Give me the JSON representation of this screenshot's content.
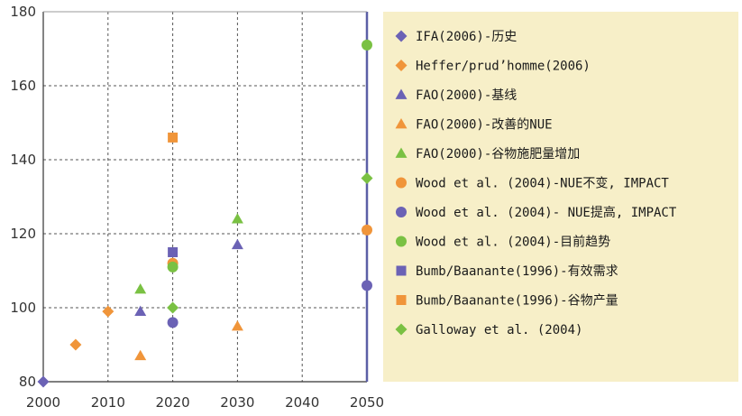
{
  "chart_data": {
    "type": "scatter",
    "title": "",
    "xlabel": "",
    "ylabel": "",
    "xlim": [
      2000,
      2050
    ],
    "ylim": [
      80,
      180
    ],
    "x_ticks": [
      2000,
      2010,
      2020,
      2030,
      2040,
      2050
    ],
    "y_ticks": [
      80,
      100,
      120,
      140,
      160,
      180
    ],
    "grid": true,
    "legend_position": "right",
    "series": [
      {
        "name": "IFA(2006)-历史",
        "marker": "diamond",
        "color": "#6b62b5",
        "points": [
          [
            2000,
            80
          ]
        ]
      },
      {
        "name": "Heffer/prud’homme(2006)",
        "marker": "diamond",
        "color": "#f0953a",
        "points": [
          [
            2005,
            90
          ],
          [
            2010,
            99
          ]
        ]
      },
      {
        "name": "FAO(2000)-基线",
        "marker": "triangle",
        "color": "#6b62b5",
        "points": [
          [
            2015,
            99
          ],
          [
            2030,
            117
          ]
        ]
      },
      {
        "name": "FAO(2000)-改善的NUE",
        "marker": "triangle",
        "color": "#f0953a",
        "points": [
          [
            2015,
            87
          ],
          [
            2030,
            95
          ]
        ]
      },
      {
        "name": "FAO(2000)-谷物施肥量增加",
        "marker": "triangle",
        "color": "#7ac143",
        "points": [
          [
            2015,
            105
          ],
          [
            2030,
            124
          ]
        ]
      },
      {
        "name": "Wood et al. (2004)-NUE不变, IMPACT",
        "marker": "circle",
        "color": "#f0953a",
        "points": [
          [
            2020,
            112
          ],
          [
            2050,
            121
          ]
        ]
      },
      {
        "name": "Wood et al. (2004)- NUE提高, IMPACT",
        "marker": "circle",
        "color": "#6b62b5",
        "points": [
          [
            2020,
            96
          ],
          [
            2050,
            106
          ]
        ]
      },
      {
        "name": "Wood et al. (2004)-目前趋势",
        "marker": "circle",
        "color": "#7ac143",
        "points": [
          [
            2020,
            111
          ],
          [
            2050,
            171
          ]
        ]
      },
      {
        "name": "Bumb/Baanante(1996)-有效需求",
        "marker": "square",
        "color": "#6b62b5",
        "points": [
          [
            2020,
            115
          ]
        ]
      },
      {
        "name": "Bumb/Baanante(1996)-谷物产量",
        "marker": "square",
        "color": "#f0953a",
        "points": [
          [
            2020,
            146
          ]
        ]
      },
      {
        "name": "Galloway et al. (2004)",
        "marker": "diamond",
        "color": "#7ac143",
        "points": [
          [
            2020,
            100
          ],
          [
            2050,
            135
          ]
        ]
      }
    ]
  },
  "style": {
    "legend_background": "#f7efc8",
    "axis_color": "#5b5fa6",
    "grid_color": "#555555"
  }
}
